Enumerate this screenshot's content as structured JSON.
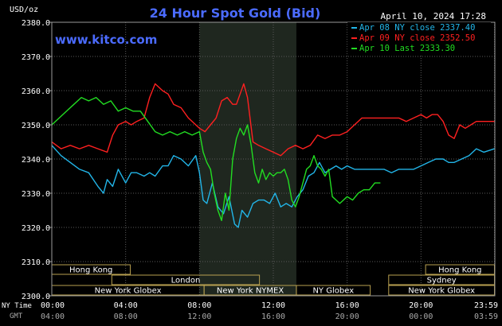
{
  "chart_data": {
    "type": "line",
    "title": "24 Hour Spot Gold (Bid)",
    "website": "www.kitco.com",
    "date_label": "April 10, 2024 17:28",
    "ylabel": "USD/oz",
    "ylim": [
      2300,
      2380
    ],
    "y_ticks": [
      "2380.0",
      "2370.0",
      "2360.0",
      "2350.0",
      "2340.0",
      "2330.0",
      "2320.0",
      "2310.0",
      "2300.0"
    ],
    "y_tick_values": [
      2380,
      2370,
      2360,
      2350,
      2340,
      2330,
      2320,
      2310,
      2300
    ],
    "x_axis_label": "NY Time",
    "x_axis_label2": "GMT",
    "x_range": [
      0,
      24
    ],
    "ny_ticks": [
      "00:00",
      "04:00",
      "08:00",
      "12:00",
      "16:00",
      "20:00",
      "23:59"
    ],
    "gmt_ticks": [
      "04:00",
      "08:00",
      "12:00",
      "16:00",
      "20:00",
      "00:00",
      "03:59"
    ],
    "tick_hours": [
      0,
      4,
      8,
      12,
      16,
      20,
      23.98
    ],
    "grid": true,
    "highlight_hours": [
      8,
      13.25
    ],
    "legend": [
      {
        "label": "Apr 08 NY close 2337.40",
        "color": "#22b5e8"
      },
      {
        "label": "Apr 09 NY close 2352.50",
        "color": "#ff2020"
      },
      {
        "label": "Apr 10 Last 2333.30",
        "color": "#22dd22"
      }
    ],
    "series": [
      {
        "name": "Apr 08",
        "color": "#22b5e8",
        "x": [
          0,
          0.5,
          1,
          1.5,
          2,
          2.5,
          2.8,
          3,
          3.3,
          3.6,
          4,
          4.3,
          4.6,
          5,
          5.3,
          5.6,
          6,
          6.3,
          6.6,
          7,
          7.4,
          7.8,
          8,
          8.2,
          8.4,
          8.7,
          9,
          9.3,
          9.6,
          9.9,
          10.1,
          10.3,
          10.6,
          10.9,
          11.2,
          11.5,
          11.8,
          12.1,
          12.4,
          12.7,
          13,
          13.3,
          13.6,
          13.9,
          14.2,
          14.5,
          14.8,
          15.1,
          15.4,
          15.7,
          16,
          16.4,
          16.8,
          17.2,
          17.6,
          18,
          18.4,
          18.8,
          19.2,
          19.6,
          20,
          20.4,
          20.8,
          21.2,
          21.5,
          21.8,
          22.2,
          22.6,
          23,
          23.4,
          23.98
        ],
        "values": [
          2344,
          2341,
          2339,
          2337,
          2336,
          2332,
          2330,
          2334,
          2332,
          2337,
          2333,
          2336,
          2336,
          2335,
          2336,
          2335,
          2338,
          2338,
          2341,
          2340,
          2338,
          2341,
          2336,
          2328,
          2327,
          2333,
          2326,
          2324,
          2329,
          2321,
          2320,
          2325,
          2323,
          2327,
          2328,
          2328,
          2327,
          2330,
          2326,
          2327,
          2326,
          2329,
          2331,
          2335,
          2336,
          2339,
          2336,
          2337,
          2338,
          2337,
          2338,
          2337,
          2337,
          2337,
          2337,
          2337,
          2336,
          2337,
          2337,
          2337,
          2338,
          2339,
          2340,
          2340,
          2339,
          2339,
          2340,
          2341,
          2343,
          2342,
          2343
        ]
      },
      {
        "name": "Apr 09",
        "color": "#ff2020",
        "x": [
          0,
          0.5,
          1,
          1.5,
          2,
          2.5,
          3,
          3.3,
          3.6,
          4,
          4.3,
          4.6,
          5,
          5.3,
          5.6,
          6,
          6.3,
          6.6,
          7,
          7.4,
          7.8,
          8,
          8.3,
          8.6,
          8.9,
          9.2,
          9.5,
          9.8,
          10,
          10.2,
          10.4,
          10.6,
          10.9,
          11.2,
          11.6,
          12,
          12.4,
          12.8,
          13.2,
          13.6,
          14,
          14.4,
          14.8,
          15.2,
          15.6,
          16,
          16.4,
          16.8,
          17.2,
          17.6,
          18,
          18.4,
          18.8,
          19.2,
          19.6,
          20,
          20.3,
          20.6,
          20.9,
          21.2,
          21.5,
          21.8,
          22.1,
          22.4,
          22.7,
          23,
          23.4,
          23.98
        ],
        "values": [
          2345,
          2343,
          2344,
          2343,
          2344,
          2343,
          2342,
          2347,
          2350,
          2351,
          2350,
          2351,
          2352,
          2358,
          2362,
          2360,
          2359,
          2356,
          2355,
          2352,
          2350,
          2349,
          2348,
          2350,
          2352,
          2357,
          2358,
          2356,
          2356,
          2359,
          2362,
          2358,
          2345,
          2344,
          2343,
          2342,
          2341,
          2343,
          2344,
          2343,
          2344,
          2347,
          2346,
          2347,
          2347,
          2348,
          2350,
          2352,
          2352,
          2352,
          2352,
          2352,
          2352,
          2351,
          2352,
          2353,
          2352,
          2353,
          2353,
          2351,
          2347,
          2346,
          2350,
          2349,
          2350,
          2351,
          2351,
          2351
        ]
      },
      {
        "name": "Apr 10",
        "color": "#22dd22",
        "x": [
          0,
          0.4,
          0.8,
          1.2,
          1.6,
          2,
          2.4,
          2.8,
          3.2,
          3.6,
          4,
          4.4,
          4.8,
          5.2,
          5.6,
          6,
          6.4,
          6.8,
          7.2,
          7.6,
          8,
          8.2,
          8.4,
          8.6,
          8.8,
          9,
          9.2,
          9.4,
          9.6,
          9.8,
          10,
          10.2,
          10.4,
          10.6,
          10.8,
          11,
          11.2,
          11.4,
          11.6,
          11.8,
          12,
          12.2,
          12.4,
          12.6,
          12.8,
          13,
          13.2,
          13.4,
          13.6,
          13.8,
          14,
          14.2,
          14.4,
          14.6,
          14.8,
          15,
          15.2,
          15.4,
          15.6,
          15.8,
          16,
          16.3,
          16.6,
          16.9,
          17.2,
          17.5,
          17.8
        ],
        "values": [
          2350,
          2352,
          2354,
          2356,
          2358,
          2357,
          2358,
          2356,
          2357,
          2354,
          2355,
          2354,
          2354,
          2351,
          2348,
          2347,
          2348,
          2347,
          2348,
          2347,
          2348,
          2342,
          2339,
          2337,
          2330,
          2325,
          2322,
          2330,
          2325,
          2340,
          2346,
          2349,
          2347,
          2350,
          2344,
          2336,
          2333,
          2337,
          2334,
          2336,
          2335,
          2336,
          2336,
          2337,
          2334,
          2328,
          2326,
          2329,
          2333,
          2337,
          2338,
          2341,
          2338,
          2337,
          2335,
          2337,
          2329,
          2328,
          2327,
          2328,
          2329,
          2328,
          2330,
          2331,
          2331,
          2333,
          2333
        ]
      }
    ],
    "sessions": [
      {
        "label": "Hong Kong",
        "start": 0,
        "end": 4.25,
        "row": 0
      },
      {
        "label": "Hong Kong",
        "start": 20.25,
        "end": 23.98,
        "row": 0
      },
      {
        "label": "London",
        "start": 3.25,
        "end": 11.25,
        "row": 1
      },
      {
        "label": "Sydney",
        "start": 18.25,
        "end": 23.98,
        "row": 1
      },
      {
        "label": "New York Globex",
        "start": 0,
        "end": 8.25,
        "row": 2
      },
      {
        "label": "New York NYMEX",
        "start": 8.25,
        "end": 13.25,
        "row": 2
      },
      {
        "label": "NY Globex",
        "start": 13.25,
        "end": 17.25,
        "row": 2
      },
      {
        "label": "New York Globex",
        "start": 18.25,
        "end": 23.98,
        "row": 2
      }
    ]
  }
}
